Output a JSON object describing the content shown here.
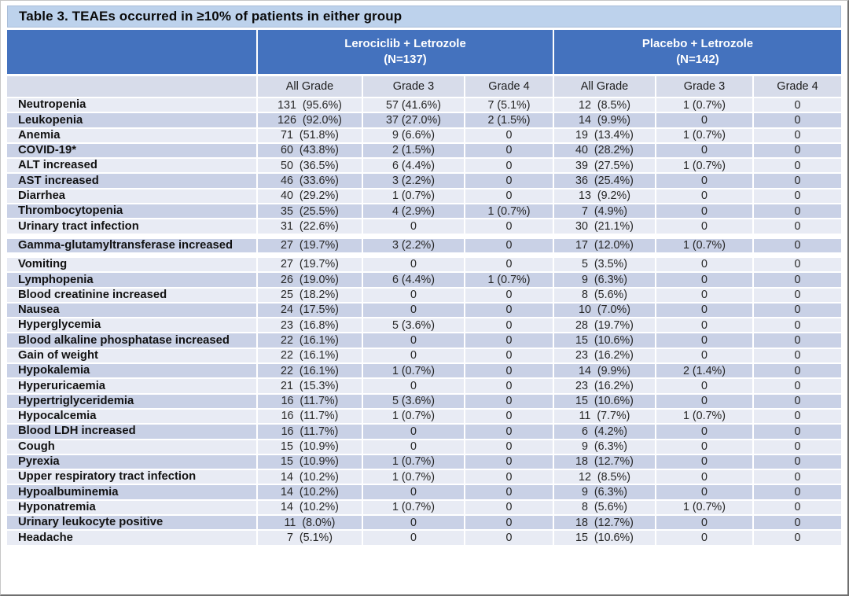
{
  "title": "Table 3. TEAEs occurred in ≥10% of patients in either group",
  "colors": {
    "header_blue": "#4472be",
    "title_bar_blue": "#bdd2ec",
    "subheader_lavender": "#d7dcea",
    "row_light": "#e8ebf4",
    "row_dark": "#c9d1e6"
  },
  "table": {
    "groups": [
      {
        "name": "Lerociclib + Letrozole",
        "n": "(N=137)"
      },
      {
        "name": "Placebo + Letrozole",
        "n": "(N=142)"
      }
    ],
    "columns": [
      "All Grade",
      "Grade 3",
      "Grade 4",
      "All Grade",
      "Grade 3",
      "Grade 4"
    ],
    "rows": [
      {
        "name": "Neutropenia",
        "values": [
          "131  (95.6%)",
          "57 (41.6%)",
          "7 (5.1%)",
          "12  (8.5%)",
          "1 (0.7%)",
          "0"
        ]
      },
      {
        "name": "Leukopenia",
        "values": [
          "126  (92.0%)",
          "37 (27.0%)",
          "2 (1.5%)",
          "14  (9.9%)",
          "0",
          "0"
        ]
      },
      {
        "name": "Anemia",
        "values": [
          "71  (51.8%)",
          "9 (6.6%)",
          "0",
          "19  (13.4%)",
          "1 (0.7%)",
          "0"
        ]
      },
      {
        "name": "COVID-19*",
        "values": [
          "60  (43.8%)",
          "2 (1.5%)",
          "0",
          "40  (28.2%)",
          "0",
          "0"
        ]
      },
      {
        "name": "ALT increased",
        "values": [
          "50  (36.5%)",
          "6 (4.4%)",
          "0",
          "39  (27.5%)",
          "1 (0.7%)",
          "0"
        ]
      },
      {
        "name": "AST increased",
        "values": [
          "46  (33.6%)",
          "3 (2.2%)",
          "0",
          "36  (25.4%)",
          "0",
          "0"
        ]
      },
      {
        "name": "Diarrhea",
        "values": [
          "40  (29.2%)",
          "1 (0.7%)",
          "0",
          "13  (9.2%)",
          "0",
          "0"
        ]
      },
      {
        "name": "Thrombocytopenia",
        "values": [
          "35  (25.5%)",
          "4 (2.9%)",
          "1 (0.7%)",
          "7  (4.9%)",
          "0",
          "0"
        ]
      },
      {
        "name": "Urinary tract infection",
        "values": [
          "31  (22.6%)",
          "0",
          "0",
          "30  (21.1%)",
          "0",
          "0"
        ]
      },
      {
        "name": "Gamma-glutamyltransferase increased",
        "gap": true,
        "values": [
          "27  (19.7%)",
          "3 (2.2%)",
          "0",
          "17  (12.0%)",
          "1 (0.7%)",
          "0"
        ]
      },
      {
        "name": "Vomiting",
        "values": [
          "27  (19.7%)",
          "0",
          "0",
          "5  (3.5%)",
          "0",
          "0"
        ]
      },
      {
        "name": "Lymphopenia",
        "values": [
          "26  (19.0%)",
          "6 (4.4%)",
          "1 (0.7%)",
          "9  (6.3%)",
          "0",
          "0"
        ]
      },
      {
        "name": "Blood creatinine increased",
        "values": [
          "25  (18.2%)",
          "0",
          "0",
          "8  (5.6%)",
          "0",
          "0"
        ]
      },
      {
        "name": "Nausea",
        "values": [
          "24  (17.5%)",
          "0",
          "0",
          "10  (7.0%)",
          "0",
          "0"
        ]
      },
      {
        "name": "Hyperglycemia",
        "values": [
          "23  (16.8%)",
          "5 (3.6%)",
          "0",
          "28  (19.7%)",
          "0",
          "0"
        ]
      },
      {
        "name": "Blood alkaline phosphatase increased",
        "values": [
          "22  (16.1%)",
          "0",
          "0",
          "15  (10.6%)",
          "0",
          "0"
        ]
      },
      {
        "name": "Gain of weight",
        "values": [
          "22  (16.1%)",
          "0",
          "0",
          "23  (16.2%)",
          "0",
          "0"
        ]
      },
      {
        "name": "Hypokalemia",
        "values": [
          "22  (16.1%)",
          "1 (0.7%)",
          "0",
          "14  (9.9%)",
          "2 (1.4%)",
          "0"
        ]
      },
      {
        "name": "Hyperuricaemia",
        "values": [
          "21  (15.3%)",
          "0",
          "0",
          "23  (16.2%)",
          "0",
          "0"
        ]
      },
      {
        "name": "Hypertriglyceridemia",
        "values": [
          "16  (11.7%)",
          "5 (3.6%)",
          "0",
          "15  (10.6%)",
          "0",
          "0"
        ]
      },
      {
        "name": "Hypocalcemia",
        "values": [
          "16  (11.7%)",
          "1 (0.7%)",
          "0",
          "11  (7.7%)",
          "1 (0.7%)",
          "0"
        ]
      },
      {
        "name": "Blood LDH increased",
        "values": [
          "16  (11.7%)",
          "0",
          "0",
          "6  (4.2%)",
          "0",
          "0"
        ]
      },
      {
        "name": "Cough",
        "values": [
          "15  (10.9%)",
          "0",
          "0",
          "9  (6.3%)",
          "0",
          "0"
        ]
      },
      {
        "name": "Pyrexia",
        "values": [
          "15  (10.9%)",
          "1 (0.7%)",
          "0",
          "18  (12.7%)",
          "0",
          "0"
        ]
      },
      {
        "name": "Upper respiratory tract infection",
        "values": [
          "14  (10.2%)",
          "1 (0.7%)",
          "0",
          "12  (8.5%)",
          "0",
          "0"
        ]
      },
      {
        "name": "Hypoalbuminemia",
        "values": [
          "14  (10.2%)",
          "0",
          "0",
          "9  (6.3%)",
          "0",
          "0"
        ]
      },
      {
        "name": "Hyponatremia",
        "values": [
          "14  (10.2%)",
          "1 (0.7%)",
          "0",
          "8  (5.6%)",
          "1 (0.7%)",
          "0"
        ]
      },
      {
        "name": "Urinary leukocyte positive",
        "values": [
          "11  (8.0%)",
          "0",
          "0",
          "18  (12.7%)",
          "0",
          "0"
        ]
      },
      {
        "name": "Headache",
        "values": [
          "7  (5.1%)",
          "0",
          "0",
          "15  (10.6%)",
          "0",
          "0"
        ]
      }
    ]
  }
}
